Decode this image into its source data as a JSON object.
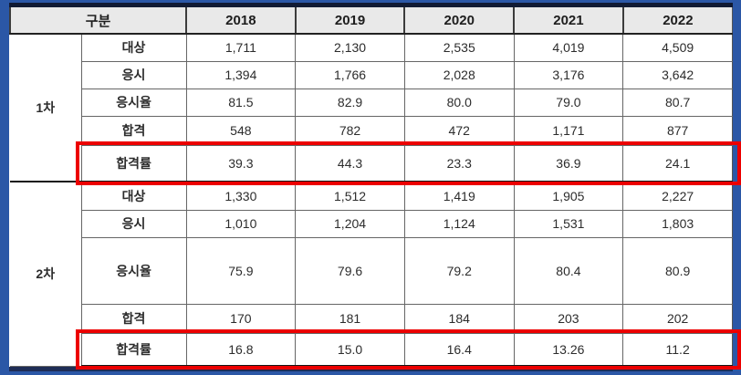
{
  "frame": {
    "border_color": "#2b57a6",
    "top_rule_color": "#111a33",
    "bottom_rule_color": "#1f2d56"
  },
  "table": {
    "header": {
      "group_label": "구분",
      "years": [
        "2018",
        "2019",
        "2020",
        "2021",
        "2022"
      ],
      "header_bg": "#e9e9e9"
    },
    "sections": [
      {
        "name": "1차",
        "rows": [
          {
            "label": "대상",
            "values": [
              "1,711",
              "2,130",
              "2,535",
              "4,019",
              "4,509"
            ],
            "highlight": false
          },
          {
            "label": "응시",
            "values": [
              "1,394",
              "1,766",
              "2,028",
              "3,176",
              "3,642"
            ],
            "highlight": false
          },
          {
            "label": "응시율",
            "values": [
              "81.5",
              "82.9",
              "80.0",
              "79.0",
              "80.7"
            ],
            "highlight": false
          },
          {
            "label": "합격",
            "values": [
              "548",
              "782",
              "472",
              "1,171",
              "877"
            ],
            "highlight": false
          },
          {
            "label": "합격률",
            "values": [
              "39.3",
              "44.3",
              "23.3",
              "36.9",
              "24.1"
            ],
            "highlight": true
          }
        ]
      },
      {
        "name": "2차",
        "rows": [
          {
            "label": "대상",
            "values": [
              "1,330",
              "1,512",
              "1,419",
              "1,905",
              "2,227"
            ],
            "highlight": false
          },
          {
            "label": "응시",
            "values": [
              "1,010",
              "1,204",
              "1,124",
              "1,531",
              "1,803"
            ],
            "highlight": false
          },
          {
            "label": "응시율",
            "values": [
              "75.9",
              "79.6",
              "79.2",
              "80.4",
              "80.9"
            ],
            "highlight": false
          },
          {
            "label": "합격",
            "values": [
              "170",
              "181",
              "184",
              "203",
              "202"
            ],
            "highlight": false
          },
          {
            "label": "합격률",
            "values": [
              "16.8",
              "15.0",
              "16.4",
              "13.26",
              "11.2"
            ],
            "highlight": true
          }
        ]
      }
    ]
  },
  "highlight": {
    "color": "#ec0000"
  },
  "chart_data": {
    "type": "table",
    "title": "",
    "columns": [
      "구분",
      "",
      "2018",
      "2019",
      "2020",
      "2021",
      "2022"
    ],
    "rows": [
      [
        "1차",
        "대상",
        "1,711",
        "2,130",
        "2,535",
        "4,019",
        "4,509"
      ],
      [
        "1차",
        "응시",
        "1,394",
        "1,766",
        "2,028",
        "3,176",
        "3,642"
      ],
      [
        "1차",
        "응시율",
        "81.5",
        "82.9",
        "80.0",
        "79.0",
        "80.7"
      ],
      [
        "1차",
        "합격",
        "548",
        "782",
        "472",
        "1,171",
        "877"
      ],
      [
        "1차",
        "합격률",
        "39.3",
        "44.3",
        "23.3",
        "36.9",
        "24.1"
      ],
      [
        "2차",
        "대상",
        "1,330",
        "1,512",
        "1,419",
        "1,905",
        "2,227"
      ],
      [
        "2차",
        "응시",
        "1,010",
        "1,204",
        "1,124",
        "1,531",
        "1,803"
      ],
      [
        "2차",
        "응시율",
        "75.9",
        "79.6",
        "79.2",
        "80.4",
        "80.9"
      ],
      [
        "2차",
        "합격",
        "170",
        "181",
        "184",
        "203",
        "202"
      ],
      [
        "2차",
        "합격률",
        "16.8",
        "15.0",
        "16.4",
        "13.26",
        "11.2"
      ]
    ],
    "highlighted_rows": [
      "1차 합격률",
      "2차 합격률"
    ]
  }
}
